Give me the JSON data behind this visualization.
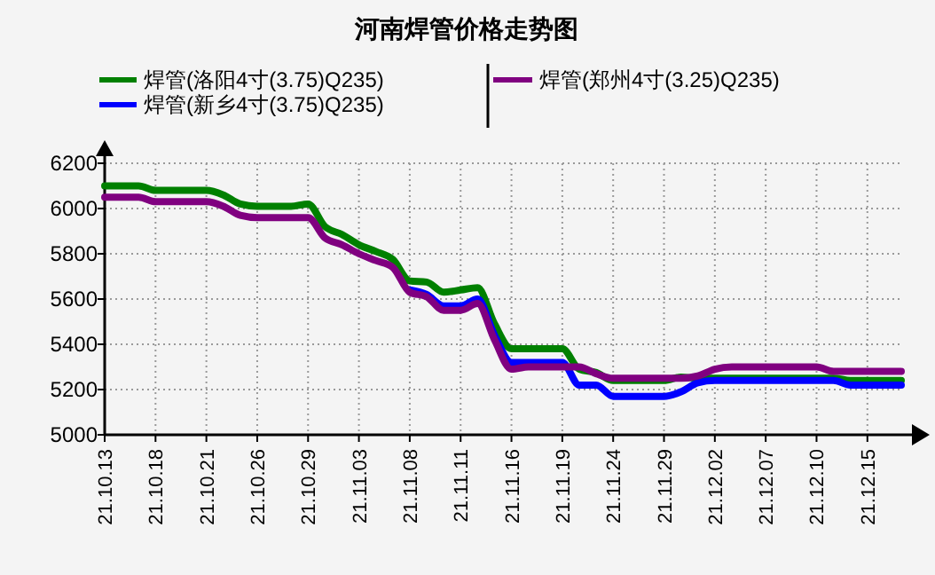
{
  "chart_data": {
    "type": "line",
    "title": "河南焊管价格走势图",
    "categories": [
      "21.10.13",
      null,
      null,
      "21.10.18",
      null,
      null,
      "21.10.21",
      null,
      null,
      "21.10.26",
      null,
      null,
      "21.10.29",
      null,
      null,
      "21.11.03",
      null,
      null,
      "21.11.08",
      null,
      null,
      "21.11.11",
      null,
      null,
      "21.11.16",
      null,
      null,
      "21.11.19",
      null,
      null,
      "21.11.24",
      null,
      null,
      "21.11.29",
      null,
      null,
      "21.12.02",
      null,
      null,
      "21.12.07",
      null,
      null,
      "21.12.10",
      null,
      null,
      "21.12.15",
      null,
      null
    ],
    "series": [
      {
        "name": "焊管(洛阳4寸(3.75)Q235)",
        "color": "#008000",
        "values": [
          6100,
          6100,
          6100,
          6080,
          6080,
          6080,
          6080,
          6060,
          6020,
          6010,
          6010,
          6010,
          6020,
          5920,
          5885,
          5840,
          5810,
          5775,
          5680,
          5675,
          5630,
          5640,
          5650,
          5490,
          5380,
          5380,
          5380,
          5380,
          5290,
          5275,
          5240,
          5240,
          5240,
          5240,
          5255,
          5250,
          5250,
          5250,
          5250,
          5250,
          5250,
          5250,
          5250,
          5250,
          5240,
          5240,
          5240,
          5240
        ]
      },
      {
        "name": "焊管(新乡4寸(3.75)Q235)",
        "color": "#0000ff",
        "values": [
          null,
          null,
          null,
          null,
          null,
          null,
          null,
          null,
          null,
          null,
          null,
          null,
          null,
          null,
          null,
          null,
          null,
          null,
          5640,
          5620,
          5570,
          5570,
          5600,
          5440,
          5320,
          5320,
          5320,
          5320,
          5220,
          5220,
          5170,
          5170,
          5170,
          5170,
          5190,
          5230,
          5240,
          5240,
          5240,
          5240,
          5240,
          5240,
          5240,
          5240,
          5220,
          5220,
          5220,
          5220
        ]
      },
      {
        "name": "焊管(郑州4寸(3.25)Q235)",
        "color": "#800080",
        "values": [
          6050,
          6050,
          6050,
          6030,
          6030,
          6030,
          6030,
          6010,
          5970,
          5960,
          5960,
          5960,
          5960,
          5870,
          5840,
          5800,
          5770,
          5740,
          5630,
          5610,
          5550,
          5550,
          5580,
          5420,
          5290,
          5300,
          5300,
          5300,
          5300,
          5270,
          5250,
          5250,
          5250,
          5250,
          5250,
          5260,
          5290,
          5300,
          5300,
          5300,
          5300,
          5300,
          5300,
          5280,
          5280,
          5280,
          5280,
          5280
        ]
      }
    ],
    "ylim": [
      5000,
      6200
    ],
    "yticks": [
      5000,
      5200,
      5400,
      5600,
      5800,
      6000,
      6200
    ],
    "grid": true,
    "legend": "top",
    "line_style": "solid"
  }
}
